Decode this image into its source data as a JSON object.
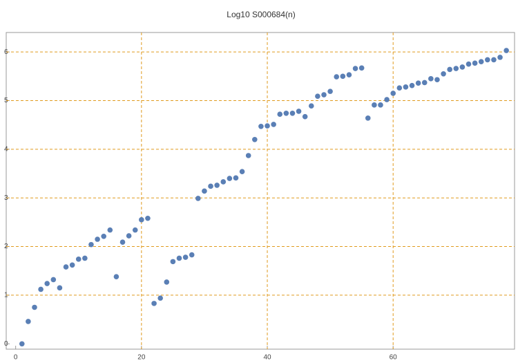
{
  "chart_data": {
    "type": "scatter",
    "title": "Log10 S000684(n)",
    "x": [
      1,
      2,
      3,
      4,
      5,
      6,
      7,
      8,
      9,
      10,
      11,
      12,
      13,
      14,
      15,
      16,
      17,
      18,
      19,
      20,
      21,
      22,
      23,
      24,
      25,
      26,
      27,
      28,
      29,
      30,
      31,
      32,
      33,
      34,
      35,
      36,
      37,
      38,
      39,
      40,
      41,
      42,
      43,
      44,
      45,
      46,
      47,
      48,
      49,
      50,
      51,
      52,
      53,
      54,
      55,
      56,
      57,
      58,
      59,
      60,
      61,
      62,
      63,
      64,
      65,
      66,
      67,
      68,
      69,
      70,
      71,
      72,
      73,
      74,
      75,
      76,
      77,
      78
    ],
    "values": [
      0,
      0.46,
      0.75,
      1.12,
      1.24,
      1.32,
      1.15,
      1.58,
      1.62,
      1.74,
      1.76,
      2.04,
      2.15,
      2.21,
      2.34,
      1.38,
      2.09,
      2.22,
      2.34,
      2.55,
      2.58,
      0.83,
      0.94,
      1.27,
      1.69,
      1.76,
      1.78,
      1.83,
      2.99,
      3.14,
      3.24,
      3.26,
      3.33,
      3.4,
      3.41,
      3.54,
      3.87,
      4.2,
      4.47,
      4.48,
      4.51,
      4.72,
      4.74,
      4.74,
      4.78,
      4.67,
      4.89,
      5.09,
      5.12,
      5.19,
      5.49,
      5.5,
      5.53,
      5.66,
      5.67,
      4.64,
      4.91,
      4.91,
      5.02,
      5.15,
      5.26,
      5.28,
      5.31,
      5.36,
      5.37,
      5.45,
      5.43,
      5.55,
      5.64,
      5.66,
      5.69,
      5.75,
      5.77,
      5.8,
      5.84,
      5.84,
      5.89,
      6.03
    ],
    "color": "#5a7fb5",
    "xlim": [
      -1.5,
      79.3
    ],
    "ylim": [
      -0.11,
      6.4
    ],
    "xticks": [
      0,
      20,
      40,
      60
    ],
    "yticks": [
      0,
      1,
      2,
      3,
      4,
      5,
      6
    ],
    "grid": true,
    "grid_color": "#e09a1c"
  }
}
